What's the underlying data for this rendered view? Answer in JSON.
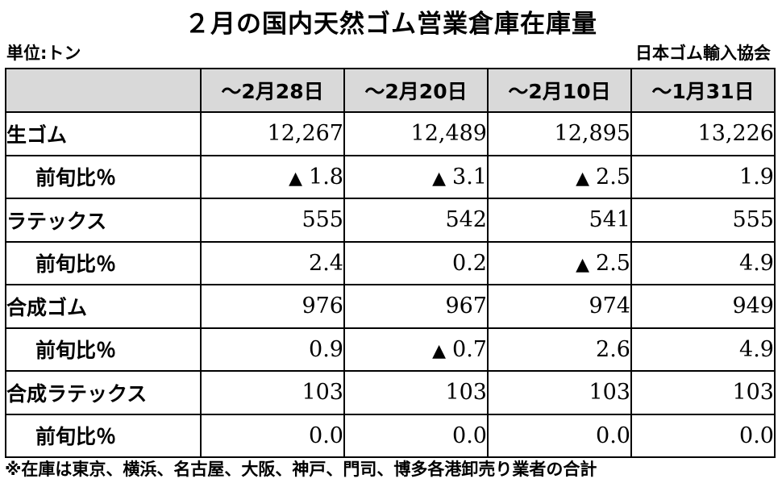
{
  "title": "２月の国内天然ゴム営業倉庫在庫量",
  "unit": "単位:トン",
  "source": "日本ゴム輸入協会",
  "columns": [
    "～2月28日",
    "～2月20日",
    "～2月10日",
    "～1月31日"
  ],
  "rows": [
    {
      "label": "生ゴム",
      "sub": false,
      "cells": [
        {
          "neg": false,
          "value": "12,267"
        },
        {
          "neg": false,
          "value": "12,489"
        },
        {
          "neg": false,
          "value": "12,895"
        },
        {
          "neg": false,
          "value": "13,226"
        }
      ]
    },
    {
      "label": "前旬比％",
      "sub": true,
      "cells": [
        {
          "neg": true,
          "value": "1.8"
        },
        {
          "neg": true,
          "value": "3.1"
        },
        {
          "neg": true,
          "value": "2.5"
        },
        {
          "neg": false,
          "value": "1.9"
        }
      ]
    },
    {
      "label": "ラテックス",
      "sub": false,
      "cells": [
        {
          "neg": false,
          "value": "555"
        },
        {
          "neg": false,
          "value": "542"
        },
        {
          "neg": false,
          "value": "541"
        },
        {
          "neg": false,
          "value": "555"
        }
      ]
    },
    {
      "label": "前旬比％",
      "sub": true,
      "cells": [
        {
          "neg": false,
          "value": "2.4"
        },
        {
          "neg": false,
          "value": "0.2"
        },
        {
          "neg": true,
          "value": "2.5"
        },
        {
          "neg": false,
          "value": "4.9"
        }
      ]
    },
    {
      "label": "合成ゴム",
      "sub": false,
      "cells": [
        {
          "neg": false,
          "value": "976"
        },
        {
          "neg": false,
          "value": "967"
        },
        {
          "neg": false,
          "value": "974"
        },
        {
          "neg": false,
          "value": "949"
        }
      ]
    },
    {
      "label": "前旬比％",
      "sub": true,
      "cells": [
        {
          "neg": false,
          "value": "0.9"
        },
        {
          "neg": true,
          "value": "0.7"
        },
        {
          "neg": false,
          "value": "2.6"
        },
        {
          "neg": false,
          "value": "4.9"
        }
      ]
    },
    {
      "label": "合成ラテックス",
      "sub": false,
      "cells": [
        {
          "neg": false,
          "value": "103"
        },
        {
          "neg": false,
          "value": "103"
        },
        {
          "neg": false,
          "value": "103"
        },
        {
          "neg": false,
          "value": "103"
        }
      ]
    },
    {
      "label": "前旬比％",
      "sub": true,
      "cells": [
        {
          "neg": false,
          "value": "0.0"
        },
        {
          "neg": false,
          "value": "0.0"
        },
        {
          "neg": false,
          "value": "0.0"
        },
        {
          "neg": false,
          "value": "0.0"
        }
      ]
    }
  ],
  "negative_marker": "▲",
  "footnote": "※在庫は東京、横浜、名古屋、大阪、神戸、門司、博多各港卸売り業者の合計"
}
